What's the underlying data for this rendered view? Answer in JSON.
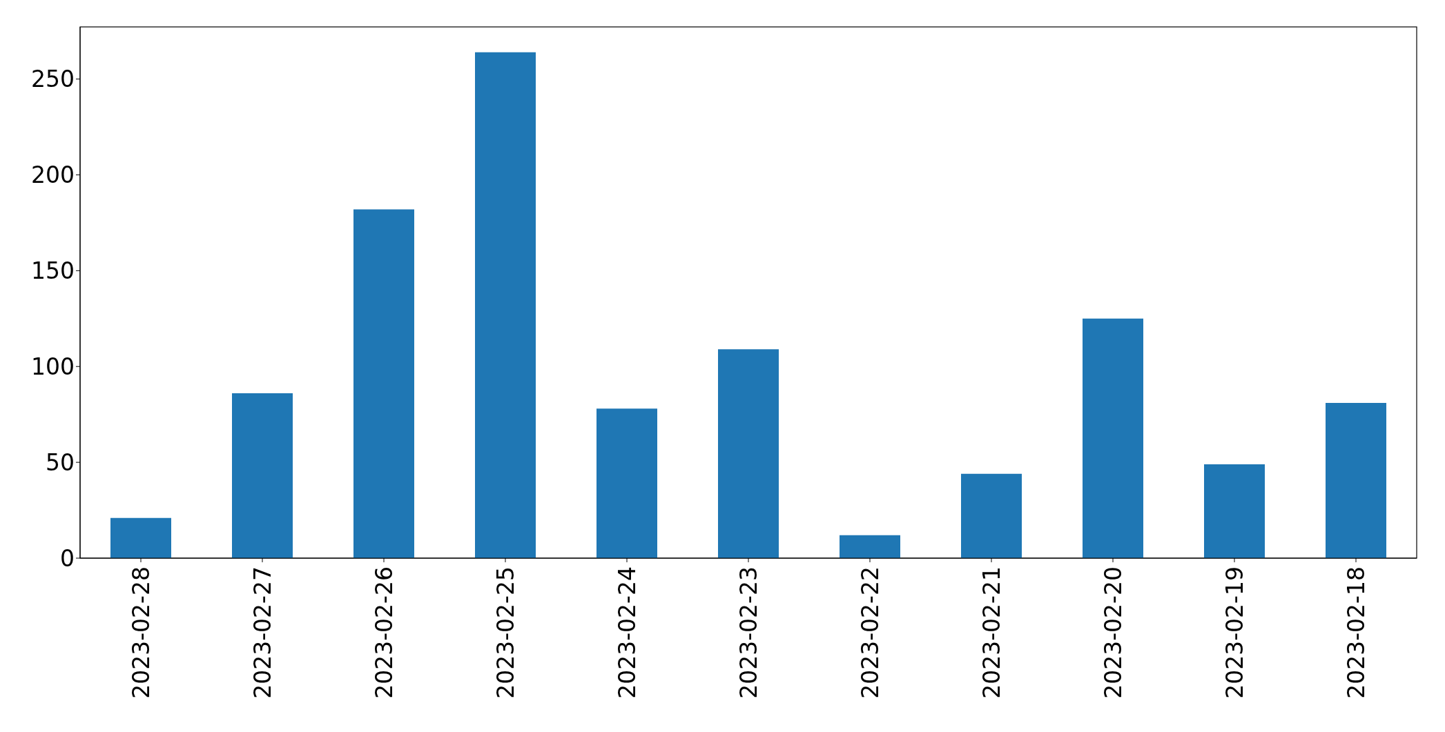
{
  "chart_data": {
    "type": "bar",
    "categories": [
      "2023-02-28",
      "2023-02-27",
      "2023-02-26",
      "2023-02-25",
      "2023-02-24",
      "2023-02-23",
      "2023-02-22",
      "2023-02-21",
      "2023-02-20",
      "2023-02-19",
      "2023-02-18"
    ],
    "values": [
      21,
      86,
      182,
      264,
      78,
      109,
      12,
      44,
      125,
      49,
      81
    ],
    "color": "#1f77b4",
    "ylim": [
      0,
      277.2
    ],
    "yticks": [
      0,
      50,
      100,
      150,
      200,
      250
    ]
  }
}
